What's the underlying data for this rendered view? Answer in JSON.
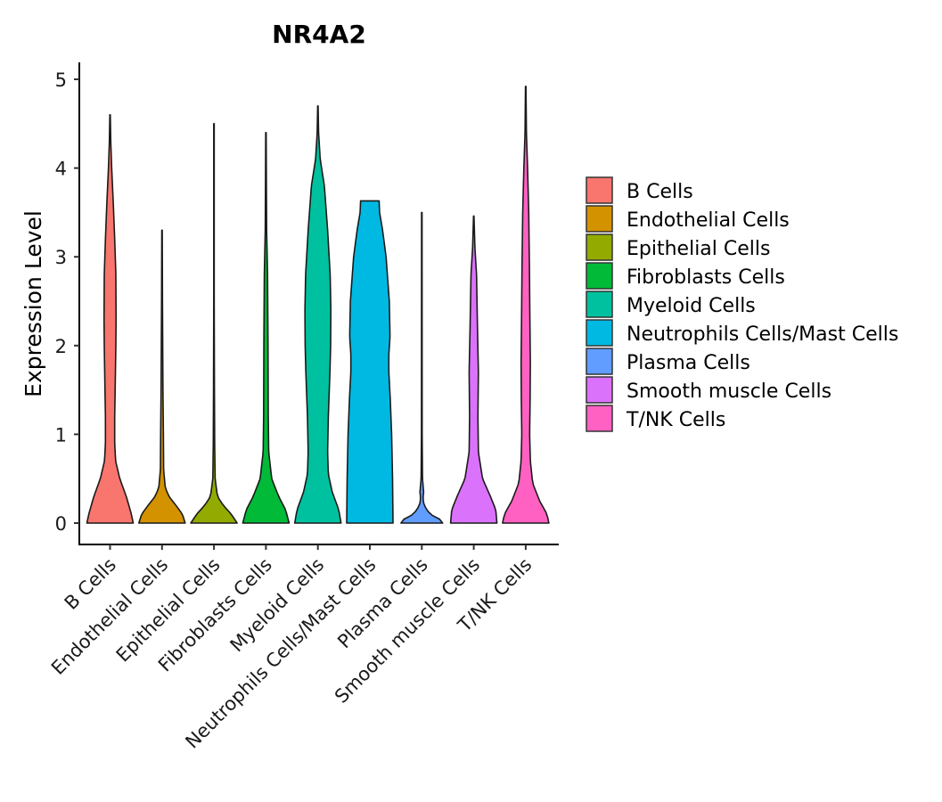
{
  "chart_data": {
    "type": "violin",
    "title": "NR4A2",
    "xlabel": "",
    "ylabel": "Expression Level",
    "ylim": [
      0,
      5.2
    ],
    "yticks": [
      0,
      1,
      2,
      3,
      4,
      5
    ],
    "legend_position": "right",
    "categories": [
      "B Cells",
      "Endothelial Cells",
      "Epithelial Cells",
      "Fibroblasts Cells",
      "Myeloid Cells",
      "Neutrophils Cells/Mast Cells",
      "Plasma Cells",
      "Smooth muscle Cells",
      "T/NK Cells"
    ],
    "series": [
      {
        "name": "B Cells",
        "color": "#F8766D",
        "max": 4.6,
        "profile": [
          [
            0,
            1.0
          ],
          [
            0.1,
            0.92
          ],
          [
            0.3,
            0.7
          ],
          [
            0.5,
            0.42
          ],
          [
            0.7,
            0.24
          ],
          [
            0.9,
            0.2
          ],
          [
            1.2,
            0.2
          ],
          [
            1.5,
            0.22
          ],
          [
            2.0,
            0.25
          ],
          [
            2.3,
            0.26
          ],
          [
            2.8,
            0.25
          ],
          [
            3.2,
            0.2
          ],
          [
            3.6,
            0.14
          ],
          [
            4.0,
            0.07
          ],
          [
            4.3,
            0.03
          ],
          [
            4.6,
            0.01
          ]
        ]
      },
      {
        "name": "Endothelial Cells",
        "color": "#D39200",
        "max": 3.3,
        "profile": [
          [
            0,
            1.0
          ],
          [
            0.1,
            0.88
          ],
          [
            0.2,
            0.6
          ],
          [
            0.3,
            0.3
          ],
          [
            0.4,
            0.14
          ],
          [
            0.6,
            0.07
          ],
          [
            1.0,
            0.06
          ],
          [
            1.5,
            0.04
          ],
          [
            2.0,
            0.03
          ],
          [
            2.5,
            0.02
          ],
          [
            3.3,
            0.01
          ]
        ]
      },
      {
        "name": "Epithelial Cells",
        "color": "#93AA00",
        "max": 4.5,
        "profile": [
          [
            0,
            1.0
          ],
          [
            0.1,
            0.75
          ],
          [
            0.2,
            0.4
          ],
          [
            0.3,
            0.15
          ],
          [
            0.5,
            0.05
          ],
          [
            0.9,
            0.03
          ],
          [
            1.5,
            0.02
          ],
          [
            2.5,
            0.01
          ],
          [
            4.5,
            0.01
          ]
        ]
      },
      {
        "name": "Fibroblasts Cells",
        "color": "#00BA38",
        "max": 4.4,
        "profile": [
          [
            0,
            1.0
          ],
          [
            0.15,
            0.85
          ],
          [
            0.3,
            0.55
          ],
          [
            0.5,
            0.25
          ],
          [
            0.8,
            0.12
          ],
          [
            1.2,
            0.1
          ],
          [
            2.0,
            0.09
          ],
          [
            2.8,
            0.07
          ],
          [
            3.3,
            0.03
          ],
          [
            3.8,
            0.02
          ],
          [
            4.4,
            0.01
          ]
        ]
      },
      {
        "name": "Myeloid Cells",
        "color": "#00C19F",
        "max": 4.7,
        "profile": [
          [
            0,
            1.0
          ],
          [
            0.15,
            0.9
          ],
          [
            0.35,
            0.62
          ],
          [
            0.55,
            0.45
          ],
          [
            0.8,
            0.42
          ],
          [
            1.2,
            0.45
          ],
          [
            1.7,
            0.52
          ],
          [
            2.0,
            0.55
          ],
          [
            2.4,
            0.56
          ],
          [
            2.8,
            0.53
          ],
          [
            3.3,
            0.42
          ],
          [
            3.8,
            0.28
          ],
          [
            4.1,
            0.1
          ],
          [
            4.4,
            0.03
          ],
          [
            4.7,
            0.01
          ]
        ]
      },
      {
        "name": "Neutrophils Cells/Mast Cells",
        "color": "#00B9E3",
        "max": 3.63,
        "profile": [
          [
            0,
            1.0
          ],
          [
            0.5,
            0.98
          ],
          [
            1.0,
            0.94
          ],
          [
            1.4,
            0.88
          ],
          [
            1.7,
            0.82
          ],
          [
            1.9,
            0.82
          ],
          [
            2.1,
            0.87
          ],
          [
            2.5,
            0.84
          ],
          [
            3.0,
            0.7
          ],
          [
            3.3,
            0.55
          ],
          [
            3.5,
            0.42
          ],
          [
            3.63,
            0.4
          ]
        ]
      },
      {
        "name": "Plasma Cells",
        "color": "#619CFF",
        "max": 3.5,
        "profile": [
          [
            0,
            0.9
          ],
          [
            0.05,
            0.75
          ],
          [
            0.1,
            0.35
          ],
          [
            0.2,
            0.1
          ],
          [
            0.28,
            0.05
          ],
          [
            0.35,
            0.08
          ],
          [
            0.5,
            0.03
          ],
          [
            1.0,
            0.015
          ],
          [
            3.5,
            0.01
          ]
        ]
      },
      {
        "name": "Smooth muscle Cells",
        "color": "#DB72FB",
        "max": 3.46,
        "profile": [
          [
            0,
            1.0
          ],
          [
            0.15,
            0.95
          ],
          [
            0.3,
            0.72
          ],
          [
            0.5,
            0.38
          ],
          [
            0.8,
            0.2
          ],
          [
            1.2,
            0.18
          ],
          [
            1.7,
            0.2
          ],
          [
            2.2,
            0.16
          ],
          [
            2.8,
            0.12
          ],
          [
            3.1,
            0.05
          ],
          [
            3.46,
            0.01
          ]
        ]
      },
      {
        "name": "T/NK Cells",
        "color": "#FF61C3",
        "max": 4.92,
        "profile": [
          [
            0,
            1.0
          ],
          [
            0.1,
            0.92
          ],
          [
            0.25,
            0.6
          ],
          [
            0.45,
            0.3
          ],
          [
            0.7,
            0.2
          ],
          [
            1.0,
            0.17
          ],
          [
            1.4,
            0.19
          ],
          [
            1.8,
            0.2
          ],
          [
            2.3,
            0.18
          ],
          [
            2.9,
            0.16
          ],
          [
            3.5,
            0.13
          ],
          [
            4.0,
            0.08
          ],
          [
            4.4,
            0.03
          ],
          [
            4.92,
            0.01
          ]
        ]
      }
    ]
  }
}
